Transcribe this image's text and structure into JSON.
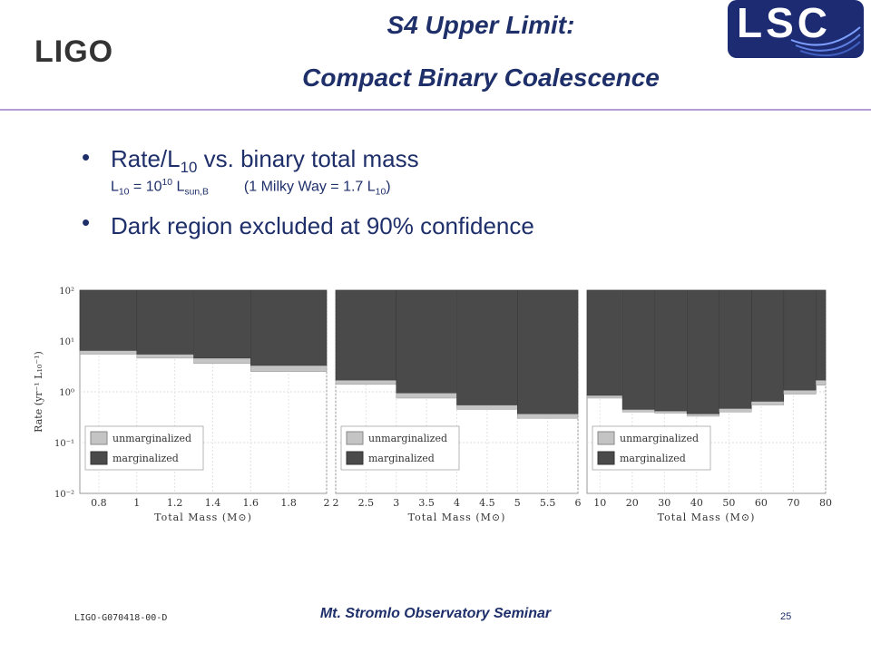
{
  "header": {
    "logo_left": "LIGO",
    "logo_right": "LSC",
    "title_line1": "S4 Upper Limit:",
    "title_line2": "Compact Binary Coalescence"
  },
  "bullets": [
    {
      "pre": "Rate/L",
      "sub": "10",
      "post": " vs. binary total mass"
    },
    {
      "pre": "Dark region excluded at 90% confidence"
    }
  ],
  "subline": {
    "a": "L",
    "a_sub": "10",
    "b": " = 10",
    "b_sup": "10",
    "c": " L",
    "c_sub": "sun,B",
    "d": "(1 Milky Way = 1.7 L",
    "d_sub": "10",
    "e": ")"
  },
  "footer": {
    "doc_id": "LIGO-G070418-00-D",
    "seminar": "Mt. Stromlo Observatory Seminar",
    "page": "25"
  },
  "colors": {
    "title": "#1e2f6a",
    "marginalized": "#4a4a4a",
    "unmarginalized": "#c4c4c4",
    "rule": "#b59bd3"
  },
  "chart_data": [
    {
      "type": "bar",
      "ylabel": "Rate (yr⁻¹ L₁₀⁻¹)",
      "xlabel": "Total Mass (M⊙)",
      "yscale": "log",
      "ylim": [
        0.01,
        100
      ],
      "y_ticks": [
        "10²",
        "10¹",
        "10⁰",
        "10⁻¹",
        "10⁻²"
      ],
      "xlim": [
        0.7,
        2.0
      ],
      "x_ticks": [
        "0.8",
        "1",
        "1.2",
        "1.4",
        "1.6",
        "1.8",
        "2"
      ],
      "bin_edges": [
        0.7,
        1.0,
        1.3,
        1.6,
        2.0
      ],
      "series": [
        {
          "name": "unmarginalized",
          "values": [
            5.5,
            4.6,
            3.6,
            2.5
          ]
        },
        {
          "name": "marginalized",
          "values": [
            6.5,
            5.5,
            4.6,
            3.3
          ]
        }
      ],
      "legend": [
        "unmarginalized",
        "marginalized"
      ],
      "legend_position": "bottom-left"
    },
    {
      "type": "bar",
      "xlabel": "Total Mass (M⊙)",
      "yscale": "log",
      "ylim": [
        0.01,
        100
      ],
      "xlim": [
        2.0,
        6.0
      ],
      "x_ticks": [
        "2",
        "2.5",
        "3",
        "3.5",
        "4",
        "4.5",
        "5",
        "5.5",
        "6"
      ],
      "bin_edges": [
        2.0,
        3.0,
        4.0,
        5.0,
        6.0
      ],
      "series": [
        {
          "name": "unmarginalized",
          "values": [
            1.4,
            0.75,
            0.45,
            0.3
          ]
        },
        {
          "name": "marginalized",
          "values": [
            1.7,
            0.95,
            0.55,
            0.37
          ]
        }
      ],
      "legend": [
        "unmarginalized",
        "marginalized"
      ],
      "legend_position": "bottom-left"
    },
    {
      "type": "bar",
      "xlabel": "Total Mass (M⊙)",
      "yscale": "log",
      "ylim": [
        0.01,
        100
      ],
      "xlim": [
        6,
        80
      ],
      "x_ticks": [
        "10",
        "20",
        "30",
        "40",
        "50",
        "60",
        "70",
        "80"
      ],
      "bin_edges": [
        6,
        17,
        27,
        37,
        47,
        57,
        67,
        77,
        80
      ],
      "series": [
        {
          "name": "unmarginalized",
          "values": [
            0.75,
            0.4,
            0.38,
            0.33,
            0.4,
            0.55,
            0.9,
            1.35
          ]
        },
        {
          "name": "marginalized",
          "values": [
            0.85,
            0.45,
            0.42,
            0.37,
            0.47,
            0.65,
            1.08,
            1.7
          ]
        }
      ],
      "legend": [
        "unmarginalized",
        "marginalized"
      ],
      "legend_position": "bottom-left"
    }
  ]
}
